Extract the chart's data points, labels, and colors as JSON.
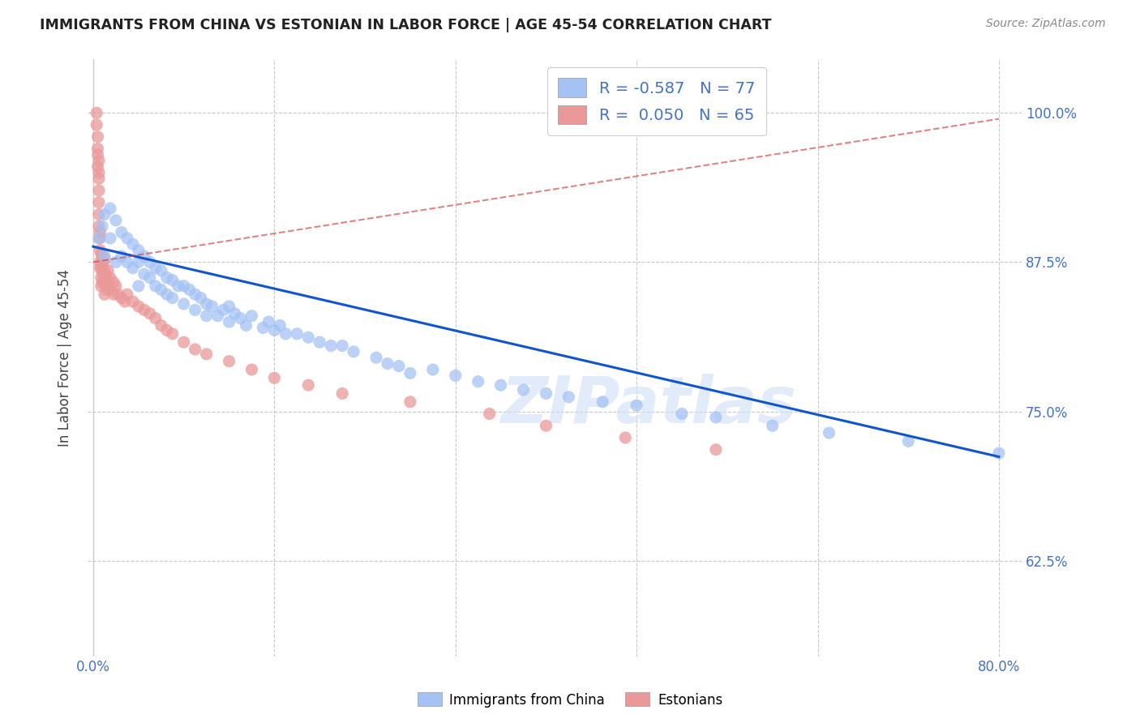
{
  "title": "IMMIGRANTS FROM CHINA VS ESTONIAN IN LABOR FORCE | AGE 45-54 CORRELATION CHART",
  "source": "Source: ZipAtlas.com",
  "ylabel": "In Labor Force | Age 45-54",
  "ytick_labels": [
    "62.5%",
    "75.0%",
    "87.5%",
    "100.0%"
  ],
  "ytick_values": [
    0.625,
    0.75,
    0.875,
    1.0
  ],
  "xlim": [
    -0.005,
    0.82
  ],
  "ylim": [
    0.545,
    1.045
  ],
  "legend_blue_r": "-0.587",
  "legend_blue_n": "77",
  "legend_pink_r": "0.050",
  "legend_pink_n": "65",
  "blue_color": "#a4c2f4",
  "pink_color": "#ea9999",
  "trend_blue_color": "#1155cc",
  "trend_pink_color": "#cc4444",
  "blue_scatter_x": [
    0.005,
    0.008,
    0.01,
    0.01,
    0.015,
    0.015,
    0.02,
    0.02,
    0.025,
    0.025,
    0.03,
    0.03,
    0.035,
    0.035,
    0.04,
    0.04,
    0.04,
    0.045,
    0.045,
    0.05,
    0.05,
    0.055,
    0.055,
    0.06,
    0.06,
    0.065,
    0.065,
    0.07,
    0.07,
    0.075,
    0.08,
    0.08,
    0.085,
    0.09,
    0.09,
    0.095,
    0.1,
    0.1,
    0.105,
    0.11,
    0.115,
    0.12,
    0.12,
    0.125,
    0.13,
    0.135,
    0.14,
    0.15,
    0.155,
    0.16,
    0.165,
    0.17,
    0.18,
    0.19,
    0.2,
    0.21,
    0.22,
    0.23,
    0.25,
    0.26,
    0.27,
    0.28,
    0.3,
    0.32,
    0.34,
    0.36,
    0.38,
    0.4,
    0.42,
    0.45,
    0.48,
    0.52,
    0.55,
    0.6,
    0.65,
    0.72,
    0.8
  ],
  "blue_scatter_y": [
    0.895,
    0.905,
    0.915,
    0.88,
    0.92,
    0.895,
    0.91,
    0.875,
    0.9,
    0.88,
    0.895,
    0.875,
    0.89,
    0.87,
    0.885,
    0.875,
    0.855,
    0.88,
    0.865,
    0.875,
    0.862,
    0.87,
    0.855,
    0.868,
    0.852,
    0.862,
    0.848,
    0.86,
    0.845,
    0.855,
    0.855,
    0.84,
    0.852,
    0.848,
    0.835,
    0.845,
    0.84,
    0.83,
    0.838,
    0.83,
    0.835,
    0.838,
    0.825,
    0.832,
    0.828,
    0.822,
    0.83,
    0.82,
    0.825,
    0.818,
    0.822,
    0.815,
    0.815,
    0.812,
    0.808,
    0.805,
    0.805,
    0.8,
    0.795,
    0.79,
    0.788,
    0.782,
    0.785,
    0.78,
    0.775,
    0.772,
    0.768,
    0.765,
    0.762,
    0.758,
    0.755,
    0.748,
    0.745,
    0.738,
    0.732,
    0.725,
    0.715
  ],
  "pink_scatter_x": [
    0.003,
    0.003,
    0.004,
    0.004,
    0.004,
    0.004,
    0.005,
    0.005,
    0.005,
    0.005,
    0.005,
    0.005,
    0.005,
    0.006,
    0.006,
    0.006,
    0.006,
    0.006,
    0.007,
    0.007,
    0.007,
    0.007,
    0.008,
    0.008,
    0.008,
    0.009,
    0.009,
    0.01,
    0.01,
    0.01,
    0.01,
    0.012,
    0.012,
    0.013,
    0.013,
    0.015,
    0.015,
    0.018,
    0.018,
    0.02,
    0.022,
    0.025,
    0.028,
    0.03,
    0.035,
    0.04,
    0.045,
    0.05,
    0.055,
    0.06,
    0.065,
    0.07,
    0.08,
    0.09,
    0.1,
    0.12,
    0.14,
    0.16,
    0.19,
    0.22,
    0.28,
    0.35,
    0.4,
    0.47,
    0.55
  ],
  "pink_scatter_y": [
    1.0,
    0.99,
    0.98,
    0.97,
    0.965,
    0.955,
    0.96,
    0.95,
    0.945,
    0.935,
    0.925,
    0.915,
    0.905,
    0.9,
    0.895,
    0.885,
    0.875,
    0.87,
    0.882,
    0.872,
    0.862,
    0.855,
    0.878,
    0.868,
    0.858,
    0.875,
    0.865,
    0.878,
    0.868,
    0.858,
    0.848,
    0.862,
    0.852,
    0.868,
    0.855,
    0.862,
    0.852,
    0.858,
    0.848,
    0.855,
    0.848,
    0.845,
    0.842,
    0.848,
    0.842,
    0.838,
    0.835,
    0.832,
    0.828,
    0.822,
    0.818,
    0.815,
    0.808,
    0.802,
    0.798,
    0.792,
    0.785,
    0.778,
    0.772,
    0.765,
    0.758,
    0.748,
    0.738,
    0.728,
    0.718
  ],
  "blue_trend_x": [
    0.0,
    0.8
  ],
  "blue_trend_y": [
    0.888,
    0.712
  ],
  "pink_trend_x": [
    0.0,
    0.8
  ],
  "pink_trend_y": [
    0.875,
    0.995
  ],
  "watermark": "ZIPatlas",
  "bottom_legend_labels": [
    "Immigrants from China",
    "Estonians"
  ]
}
